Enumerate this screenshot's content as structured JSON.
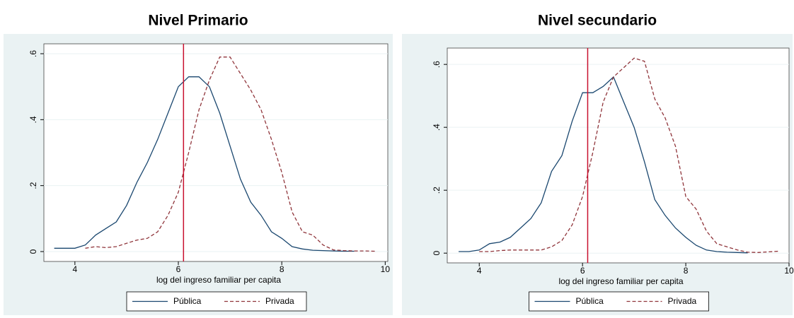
{
  "chart_data": [
    {
      "type": "line",
      "title": "Nivel Primario",
      "xlabel": "log del ingreso familiar per capita",
      "x": [
        3.6,
        3.8,
        4.0,
        4.2,
        4.4,
        4.6,
        4.8,
        5.0,
        5.2,
        5.4,
        5.6,
        5.8,
        6.0,
        6.2,
        6.4,
        6.6,
        6.8,
        7.0,
        7.2,
        7.4,
        7.6,
        7.8,
        8.0,
        8.2,
        8.4,
        8.6,
        8.8,
        9.0,
        9.2,
        9.4,
        9.6,
        9.8
      ],
      "series": [
        {
          "name": "Pública",
          "color": "#1a476f",
          "dash": false,
          "values": [
            0.01,
            0.01,
            0.01,
            0.02,
            0.05,
            0.07,
            0.09,
            0.14,
            0.21,
            0.27,
            0.34,
            0.42,
            0.5,
            0.53,
            0.53,
            0.5,
            0.42,
            0.32,
            0.22,
            0.15,
            0.11,
            0.06,
            0.04,
            0.015,
            0.008,
            0.004,
            0.003,
            0.002,
            0.001,
            0.001,
            null,
            null
          ]
        },
        {
          "name": "Privada",
          "color": "#90353b",
          "dash": true,
          "values": [
            null,
            null,
            null,
            0.01,
            0.015,
            0.012,
            0.015,
            0.025,
            0.035,
            0.04,
            0.06,
            0.11,
            0.18,
            0.3,
            0.43,
            0.52,
            0.59,
            0.59,
            0.54,
            0.49,
            0.43,
            0.34,
            0.24,
            0.12,
            0.06,
            0.05,
            0.02,
            0.005,
            0.003,
            0.002,
            0.002,
            0.001
          ]
        }
      ],
      "vline": 6.1,
      "vline_color": "#c8102e",
      "xlim": [
        3.4,
        10.05
      ],
      "xticks": [
        4,
        6,
        8,
        10
      ],
      "ylim": [
        -0.03,
        0.63
      ],
      "yticks": [
        0,
        {
          "value": 0.2,
          "label": ".2"
        },
        {
          "value": 0.4,
          "label": ".4"
        },
        {
          "value": 0.6,
          "label": ".6"
        }
      ],
      "grid": true
    },
    {
      "type": "line",
      "title": "Nivel secundario",
      "xlabel": "log del ingreso familiar per capita",
      "x": [
        3.6,
        3.8,
        4.0,
        4.2,
        4.4,
        4.6,
        4.8,
        5.0,
        5.2,
        5.4,
        5.6,
        5.8,
        6.0,
        6.2,
        6.4,
        6.6,
        6.8,
        7.0,
        7.2,
        7.4,
        7.6,
        7.8,
        8.0,
        8.2,
        8.4,
        8.6,
        8.8,
        9.0,
        9.2,
        9.4,
        9.6,
        9.8
      ],
      "series": [
        {
          "name": "Pública",
          "color": "#1a476f",
          "dash": false,
          "values": [
            0.005,
            0.005,
            0.01,
            0.03,
            0.035,
            0.05,
            0.08,
            0.11,
            0.16,
            0.26,
            0.31,
            0.42,
            0.51,
            0.51,
            0.53,
            0.56,
            0.48,
            0.4,
            0.29,
            0.17,
            0.12,
            0.08,
            0.05,
            0.025,
            0.01,
            0.005,
            0.003,
            0.002,
            0.001,
            null,
            null,
            null
          ]
        },
        {
          "name": "Privada",
          "color": "#90353b",
          "dash": true,
          "values": [
            null,
            null,
            0.005,
            0.005,
            0.008,
            0.01,
            0.01,
            0.01,
            0.01,
            0.02,
            0.04,
            0.09,
            0.18,
            0.32,
            0.48,
            0.56,
            0.59,
            0.62,
            0.61,
            0.49,
            0.43,
            0.34,
            0.18,
            0.14,
            0.07,
            0.03,
            0.02,
            0.01,
            0.003,
            0.002,
            0.004,
            0.006
          ]
        }
      ],
      "vline": 6.1,
      "vline_color": "#c8102e",
      "xlim": [
        3.38,
        10.0
      ],
      "xticks": [
        4,
        6,
        8,
        10
      ],
      "ylim": [
        -0.031,
        0.652
      ],
      "yticks": [
        0,
        {
          "value": 0.2,
          "label": ".2"
        },
        {
          "value": 0.4,
          "label": ".4"
        },
        {
          "value": 0.6,
          "label": ".6"
        }
      ],
      "grid": true
    }
  ]
}
